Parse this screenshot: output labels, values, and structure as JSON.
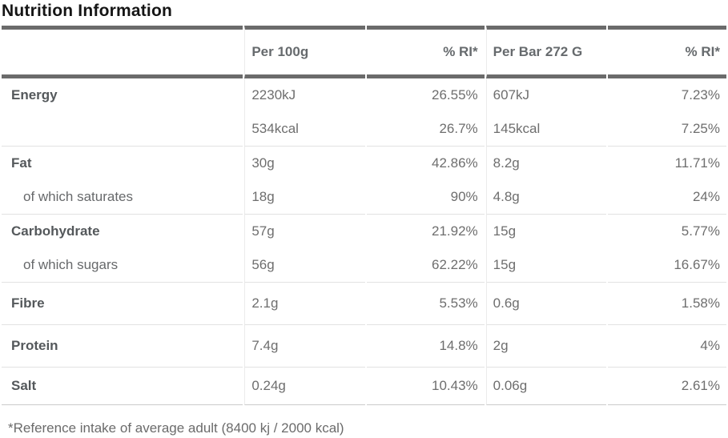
{
  "page": {
    "title": "Nutrition Information",
    "footnote": "*Reference intake of average adult (8400 kj / 2000 kcal)"
  },
  "table": {
    "columns": [
      "",
      "Per 100g",
      "% RI*",
      "Per Bar 272 G",
      "% RI*"
    ],
    "rows": [
      {
        "label": "Energy",
        "per_100g": "2230kJ",
        "ri_100g": "26.55%",
        "per_bar": "607kJ",
        "ri_bar": "7.23%"
      },
      {
        "label": "",
        "per_100g": "534kcal",
        "ri_100g": "26.7%",
        "per_bar": "145kcal",
        "ri_bar": "7.25%"
      },
      {
        "label": "Fat",
        "per_100g": "30g",
        "ri_100g": "42.86%",
        "per_bar": "8.2g",
        "ri_bar": "11.71%"
      },
      {
        "label": "of which saturates",
        "per_100g": "18g",
        "ri_100g": "90%",
        "per_bar": "4.8g",
        "ri_bar": "24%"
      },
      {
        "label": "Carbohydrate",
        "per_100g": "57g",
        "ri_100g": "21.92%",
        "per_bar": "15g",
        "ri_bar": "5.77%"
      },
      {
        "label": "of which sugars",
        "per_100g": "56g",
        "ri_100g": "62.22%",
        "per_bar": "15g",
        "ri_bar": "16.67%"
      },
      {
        "label": "Fibre",
        "per_100g": "2.1g",
        "ri_100g": "5.53%",
        "per_bar": "0.6g",
        "ri_bar": "1.58%"
      },
      {
        "label": "Protein",
        "per_100g": "7.4g",
        "ri_100g": "14.8%",
        "per_bar": "2g",
        "ri_bar": "4%"
      },
      {
        "label": "Salt",
        "per_100g": "0.24g",
        "ri_100g": "10.43%",
        "per_bar": "0.06g",
        "ri_bar": "2.61%"
      }
    ]
  },
  "colors": {
    "heavy_border": "#6b6b6b",
    "row_separator": "#e2e2e2",
    "column_divider": "#ebebeb",
    "bottom_border": "#cbcbcb",
    "title_text": "#151515",
    "label_text": "#54585b",
    "value_text": "#6e6e6e"
  }
}
